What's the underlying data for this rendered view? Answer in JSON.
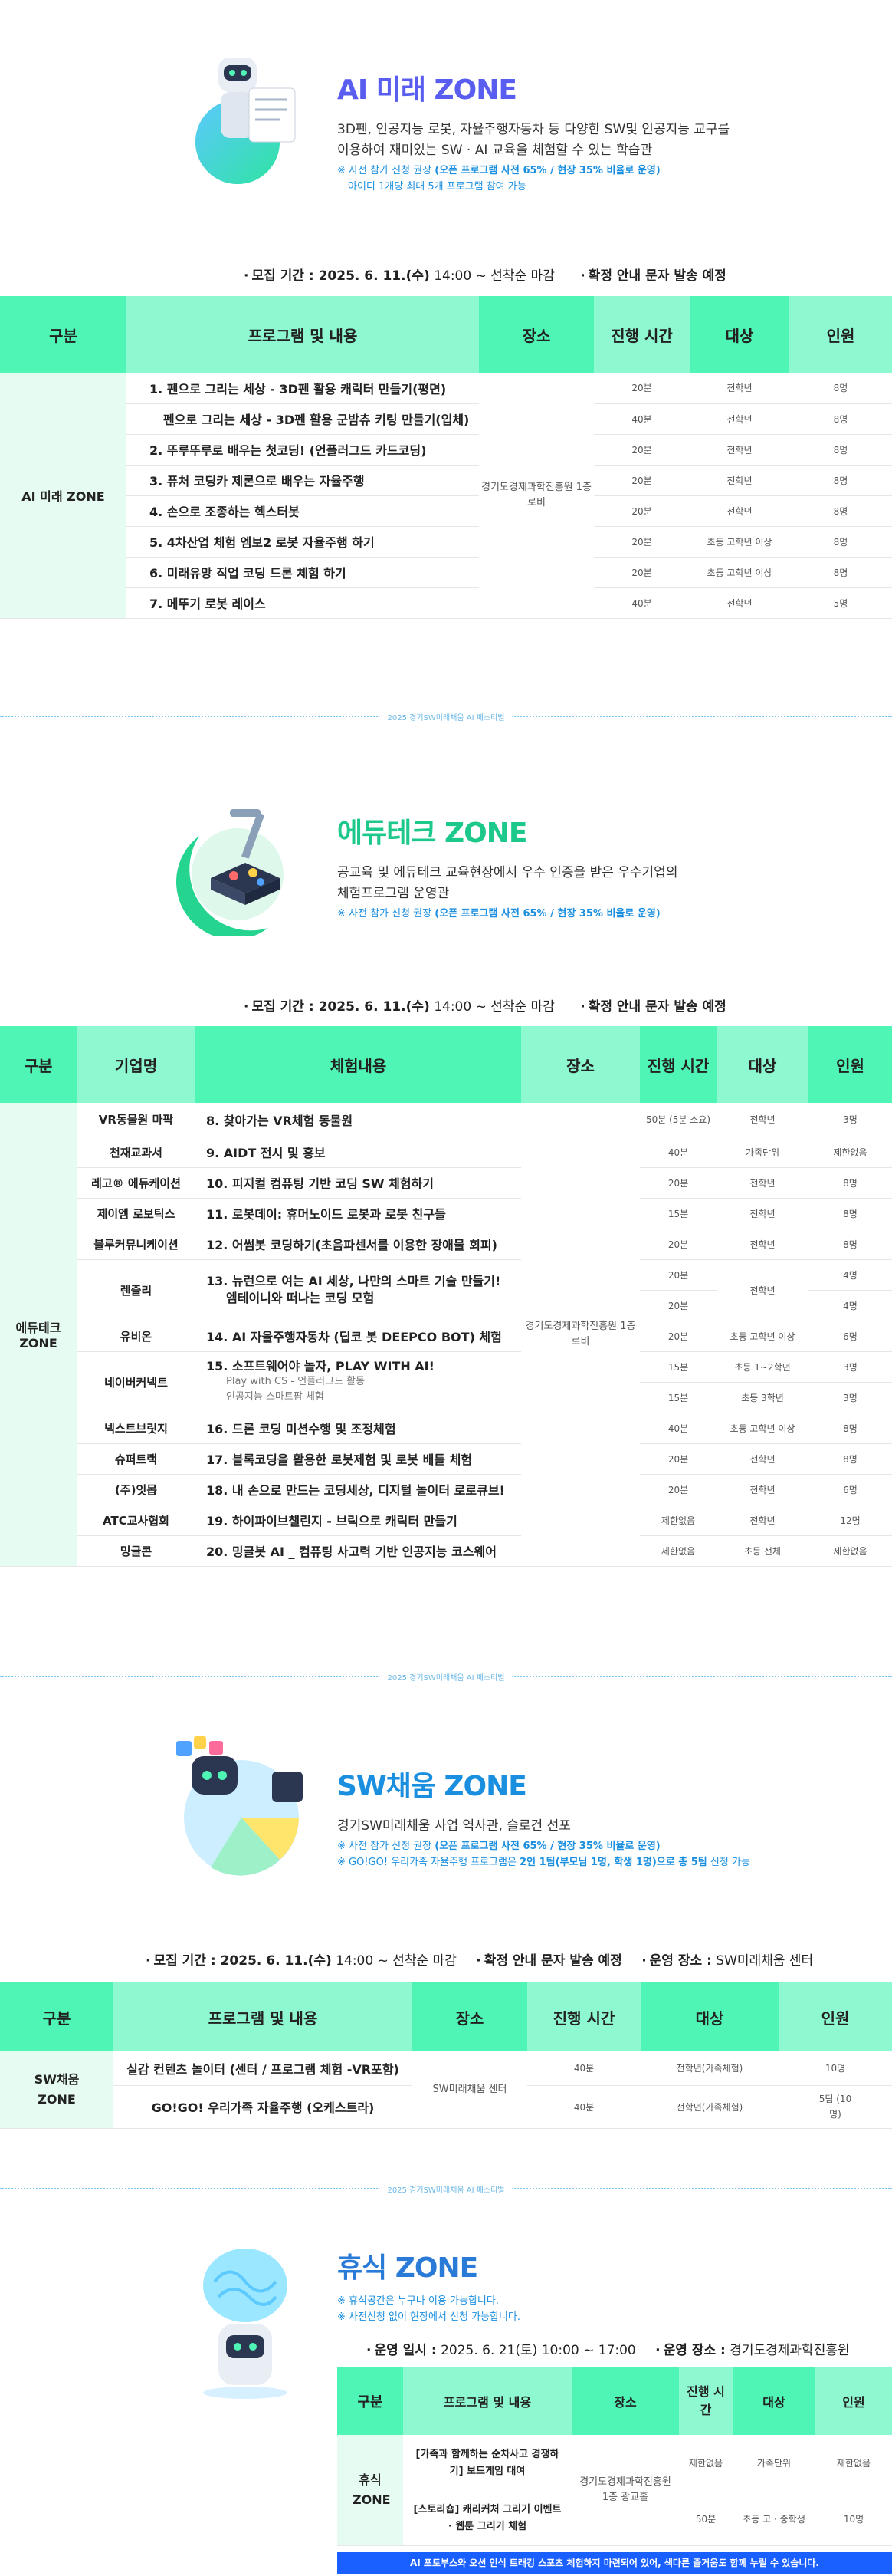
{
  "ai": {
    "title": "AI 미래 ZONE",
    "desc1": "3D펜, 인공지능 로봇, 자율주행자동차 등 다양한 SW및 인공지능 교구를",
    "desc2": "이용하여 재미있는 SW · AI 교육을 체험할 수 있는 학습관",
    "note1_prefix": "※ 사전 참가 신청 권장",
    "note1_bold": "(오픈 프로그램 사전 65% / 현장 35% 비율로 운영)",
    "note2": "아이디 1개당 최대 5개 프로그램 참여 가능",
    "period_label": "모집 기간 : 2025. 6. 11.(수)",
    "period_time": "14:00 ~ 선착순 마감",
    "period_notice": "확정 안내 문자 발송 예정",
    "headers": [
      "구분",
      "프로그램 및 내용",
      "장소",
      "진행 시간",
      "대상",
      "인원"
    ],
    "category": "AI 미래 ZONE",
    "place": "경기도경제과학진흥원 1층 로비",
    "rows": [
      {
        "prog": "1. 펜으로 그리는 세상 - 3D펜 활용 캐릭터 만들기(평면)",
        "time": "20분",
        "target": "전학년",
        "count": "8명"
      },
      {
        "prog": "펜으로 그리는 세상 - 3D펜 활용 군밤츄 키링 만들기(입체)",
        "time": "40분",
        "target": "전학년",
        "count": "8명"
      },
      {
        "prog": "2. 뚜루뚜루로 배우는 첫코딩! (언플러그드 카드코딩)",
        "time": "20분",
        "target": "전학년",
        "count": "8명"
      },
      {
        "prog": "3. 퓨처 코딩카 제론으로 배우는 자율주행",
        "time": "20분",
        "target": "전학년",
        "count": "8명"
      },
      {
        "prog": "4. 손으로 조종하는 헥스터봇",
        "time": "20분",
        "target": "전학년",
        "count": "8명"
      },
      {
        "prog": "5. 4차산업 체험 엠보2 로봇 자율주행 하기",
        "time": "20분",
        "target": "초등 고학년 이상",
        "count": "8명"
      },
      {
        "prog": "6. 미래유망 직업 코딩 드론 체험 하기",
        "time": "20분",
        "target": "초등 고학년 이상",
        "count": "8명"
      },
      {
        "prog": "7. 메뚜기 로봇 레이스",
        "time": "40분",
        "target": "전학년",
        "count": "5명"
      }
    ]
  },
  "divider_text": "2025 경기SW미래채움 AI 페스티벌",
  "edu": {
    "title": "에듀테크 ZONE",
    "desc1": "공교육 및 에듀테크 교육현장에서 우수 인증을 받은 우수기업의",
    "desc2": "체험프로그램 운영관",
    "note1_prefix": "※ 사전 참가 신청 권장",
    "note1_bold": "(오픈 프로그램 사전 65% / 현장 35% 비율로 운영)",
    "period_label": "모집 기간 : 2025. 6. 11.(수)",
    "period_time": "14:00 ~ 선착순 마감",
    "period_notice": "확정 안내 문자 발송 예정",
    "headers": [
      "구분",
      "기업명",
      "체험내용",
      "장소",
      "진행 시간",
      "대상",
      "인원"
    ],
    "category": "에듀테크 ZONE",
    "place": "경기도경제과학진흥원 1층 로비",
    "rows": [
      {
        "comp": "VR동물원 마팍",
        "prog": "8. 찾아가는 VR체험 동물원",
        "time": "50분 (5분 소요)",
        "target": "전학년",
        "count": "3명"
      },
      {
        "comp": "천재교과서",
        "prog": "9. AIDT 전시 및 홍보",
        "time": "40분",
        "target": "가족단위",
        "count": "제한없음"
      },
      {
        "comp": "레고® 에듀케이션",
        "prog": "10. 피지컬 컴퓨팅 기반 코딩 SW 체험하기",
        "time": "20분",
        "target": "전학년",
        "count": "8명"
      },
      {
        "comp": "제이엠 로보틱스",
        "prog": "11. 로봇데이: 휴머노이드 로봇과 로봇 친구들",
        "time": "15분",
        "target": "전학년",
        "count": "8명"
      },
      {
        "comp": "블루커뮤니케이션",
        "prog": "12. 어썸봇 코딩하기(초음파센서를 이용한 장애물 회피)",
        "time": "20분",
        "target": "전학년",
        "count": "8명"
      },
      {
        "comp": "렌즐리",
        "prog": "13. 뉴런으로 여는 AI 세상, 나만의 스마트 기술 만들기!",
        "prog2": "엠테이니와 떠나는 코딩 모험",
        "time": "20분",
        "time2": "20분",
        "target": "전학년",
        "count": "4명",
        "count2": "4명"
      },
      {
        "comp": "유비온",
        "prog": "14. AI 자율주행자동차 (딥코 봇 DEEPCO BOT) 체험",
        "time": "20분",
        "target": "초등 고학년 이상",
        "count": "6명"
      },
      {
        "comp": "네이버커넥트",
        "prog": "15. 소프트웨어야 놀자, PLAY WITH AI!",
        "prog2": "Play with CS - 언플러그드 활동",
        "prog3": "인공지능 스마트팜 체험",
        "time": "15분",
        "time2": "15분",
        "target": "초등 1~2학년",
        "target2": "초등 3학년",
        "count": "3명",
        "count2": "3명"
      },
      {
        "comp": "넥스트브릿지",
        "prog": "16. 드론 코딩 미션수행 및 조정체험",
        "time": "40분",
        "target": "초등 고학년 이상",
        "count": "8명"
      },
      {
        "comp": "슈퍼트랙",
        "prog": "17. 블록코딩을 활용한 로봇제험 및 로봇 배틀 체험",
        "time": "20분",
        "target": "전학년",
        "count": "8명"
      },
      {
        "comp": "(주)잇몹",
        "prog": "18. 내 손으로 만드는 코딩세상, 디지털 놀이터 로로큐브!",
        "time": "20분",
        "target": "전학년",
        "count": "6명"
      },
      {
        "comp": "ATC교사협회",
        "prog": "19. 하이파이브챌린지 - 브릭으로 캐릭터 만들기",
        "time": "제한없음",
        "target": "전학년",
        "count": "12명"
      },
      {
        "comp": "밍글콘",
        "prog": "20. 밍글봇 AI _ 컴퓨팅 사고력 기반 인공지능 코스웨어",
        "time": "제한없음",
        "target": "초등 전체",
        "count": "제한없음"
      }
    ]
  },
  "sw": {
    "title": "SW채움 ZONE",
    "desc1": "경기SW미래채움 사업 역사관, 슬로건 선포",
    "note1_prefix": "※ 사전 참가 신청 권장",
    "note1_bold": "(오픈 프로그램 사전 65% / 현장 35% 비율로 운영)",
    "note2_prefix": "※ GO!GO! 우리가족 자율주행 프로그램은",
    "note2_bold": "2인 1팀(부모님 1명, 학생 1명)으로 총 5팀",
    "note2_suffix": "신청 가능",
    "period_label": "모집 기간 : 2025. 6. 11.(수)",
    "period_time": "14:00 ~ 선착순 마감",
    "period_notice": "확정 안내 문자 발송 예정",
    "place_label": "운영 장소 :",
    "place_value": "SW미래채움 센터",
    "headers": [
      "구분",
      "프로그램 및 내용",
      "장소",
      "진행 시간",
      "대상",
      "인원"
    ],
    "category": "SW채움 ZONE",
    "place": "SW미래채움 센터",
    "rows": [
      {
        "prog": "실감 컨텐츠 놀이터 (센터 / 프로그램 체험 -VR포함)",
        "time": "40분",
        "target": "전학년(가족체험)",
        "count": "10명"
      },
      {
        "prog": "GO!GO! 우리가족 자율주행 (오케스트라)",
        "time": "40분",
        "target": "전학년(가족체험)",
        "count": "5팀 (10명)"
      }
    ]
  },
  "rest": {
    "title": "휴식 ZONE",
    "note1": "※ 휴식공간은 누구나 이용 가능합니다.",
    "note2": "※ 사전신청 없이 현장에서 신청 가능합니다.",
    "period_label": "운영 일시 :",
    "period_value": "2025. 6. 21(토) 10:00 ~ 17:00",
    "place_label": "운영 장소 :",
    "place_value": "경기도경제과학진흥원",
    "headers": [
      "구분",
      "프로그램 및 내용",
      "장소",
      "진행 시간",
      "대상",
      "인원"
    ],
    "category": "휴식 ZONE",
    "place": "경기도경제과학진흥원 1층 광교홀",
    "rows": [
      {
        "prog": "[가족과 함께하는 순차사고 경쟁하기] 보드게임 대여",
        "time": "제한없음",
        "target": "가족단위",
        "count": "제한없음"
      },
      {
        "prog": "[스토리숍] 캐리커처 그리기 이벤트 · 웹툰 그리기 체험",
        "time": "50분",
        "target": "초등 고 · 중학생",
        "count": "10명"
      }
    ],
    "footnote": "AI 포토부스와 오션 인식 트래킹 스포츠 체험하지 마련되어 있어, 색다른 즐거움도 함께 누릴 수 있습니다."
  }
}
